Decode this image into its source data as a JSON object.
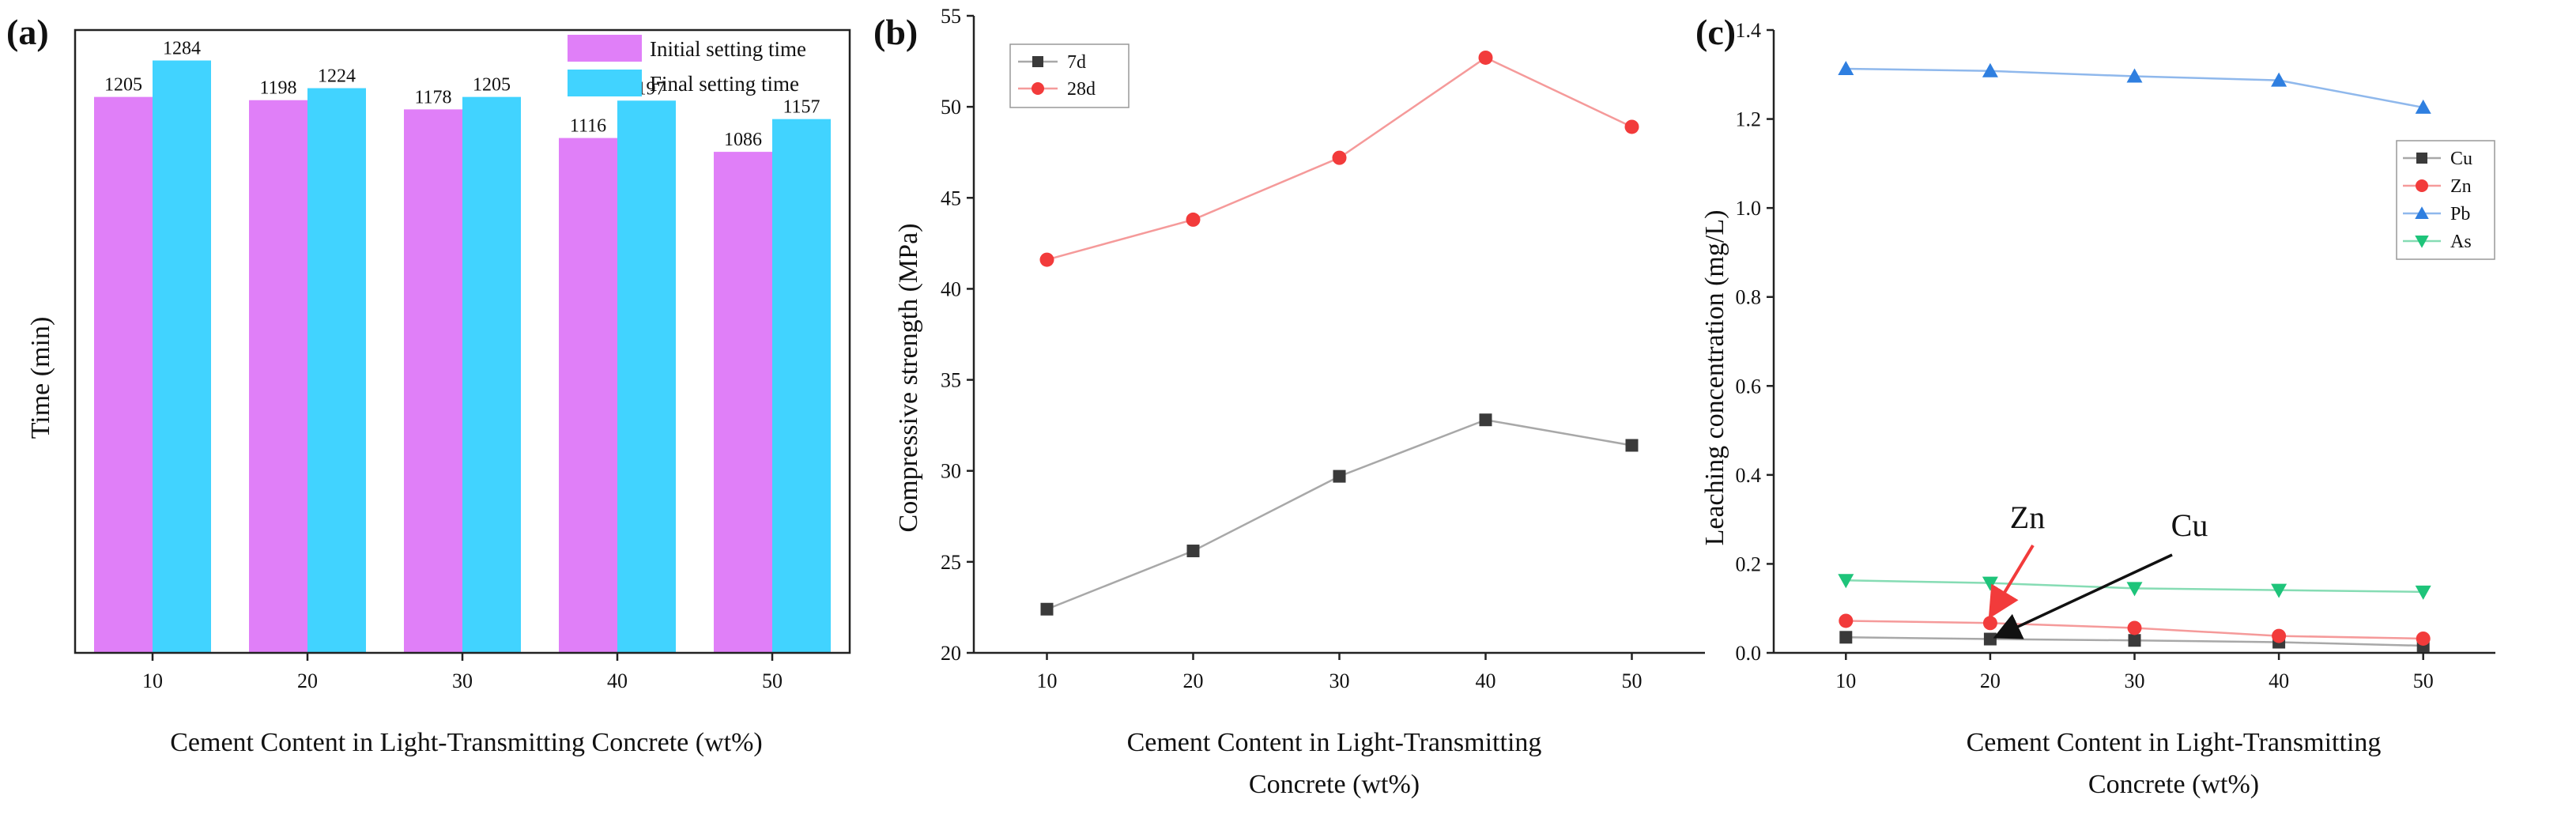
{
  "chart_data": [
    {
      "panel": "(a)",
      "type": "bar",
      "xlabel": "Cement Content in Light-Transmitting Concrete (wt%)",
      "ylabel": "Time (min)",
      "categories": [
        "10",
        "20",
        "30",
        "40",
        "50"
      ],
      "ylim": [
        0,
        1350
      ],
      "series": [
        {
          "name": "Initial setting time",
          "color": "#e07ff8",
          "values": [
            1205,
            1198,
            1178,
            1116,
            1086
          ]
        },
        {
          "name": "Final setting time",
          "color": "#41d3ff",
          "values": [
            1284,
            1224,
            1205,
            1197,
            1157
          ]
        }
      ],
      "legend": "top-right"
    },
    {
      "panel": "(b)",
      "type": "line",
      "xlabel_lines": [
        "Cement Content in Light-Transmitting",
        "Concrete (wt%)"
      ],
      "ylabel": "Compressive strength (MPa)",
      "x": [
        10,
        20,
        30,
        40,
        50
      ],
      "xlim": [
        5,
        55
      ],
      "ylim": [
        20,
        55
      ],
      "xticks": [
        10,
        20,
        30,
        40,
        50
      ],
      "yticks": [
        20,
        25,
        30,
        35,
        40,
        45,
        50,
        55
      ],
      "series": [
        {
          "name": "7d",
          "marker": "square",
          "color": "#3a3a3a",
          "line": "#a8a8a8",
          "values": [
            22.4,
            25.6,
            29.7,
            32.8,
            31.4
          ]
        },
        {
          "name": "28d",
          "marker": "circle",
          "color": "#f23b3b",
          "line": "#f59a9a",
          "values": [
            41.6,
            43.8,
            47.2,
            52.7,
            48.9
          ]
        }
      ],
      "legend": "top-left"
    },
    {
      "panel": "(c)",
      "type": "line",
      "xlabel_lines": [
        "Cement Content in Light-Transmitting",
        "Concrete (wt%)"
      ],
      "ylabel": "Leaching concentration (mg/L)",
      "x": [
        10,
        20,
        30,
        40,
        50
      ],
      "xlim": [
        5,
        55
      ],
      "ylim": [
        0,
        1.4
      ],
      "xticks": [
        10,
        20,
        30,
        40,
        50
      ],
      "yticks": [
        0.0,
        0.2,
        0.4,
        0.6,
        0.8,
        1.0,
        1.2,
        1.4
      ],
      "series": [
        {
          "name": "Cu",
          "marker": "square",
          "color": "#3a3a3a",
          "line": "#a8a8a8",
          "values": [
            0.035,
            0.031,
            0.028,
            0.024,
            0.016
          ]
        },
        {
          "name": "Zn",
          "marker": "circle",
          "color": "#f23b3b",
          "line": "#f59a9a",
          "values": [
            0.072,
            0.067,
            0.056,
            0.038,
            0.032
          ]
        },
        {
          "name": "Pb",
          "marker": "triangle-up",
          "color": "#2f7fe0",
          "line": "#8fb8ec",
          "values": [
            1.313,
            1.308,
            1.296,
            1.287,
            1.226
          ]
        },
        {
          "name": "As",
          "marker": "triangle-down",
          "color": "#1ec47a",
          "line": "#86dcb4",
          "values": [
            0.163,
            0.157,
            0.145,
            0.141,
            0.137
          ]
        }
      ],
      "annotations": [
        {
          "text": "Zn",
          "color": "#f23b3b",
          "target_series": "Zn",
          "target_x": 20
        },
        {
          "text": "Cu",
          "color": "#111111",
          "target_series": "Cu",
          "target_x": 20
        }
      ],
      "legend": "right"
    }
  ]
}
